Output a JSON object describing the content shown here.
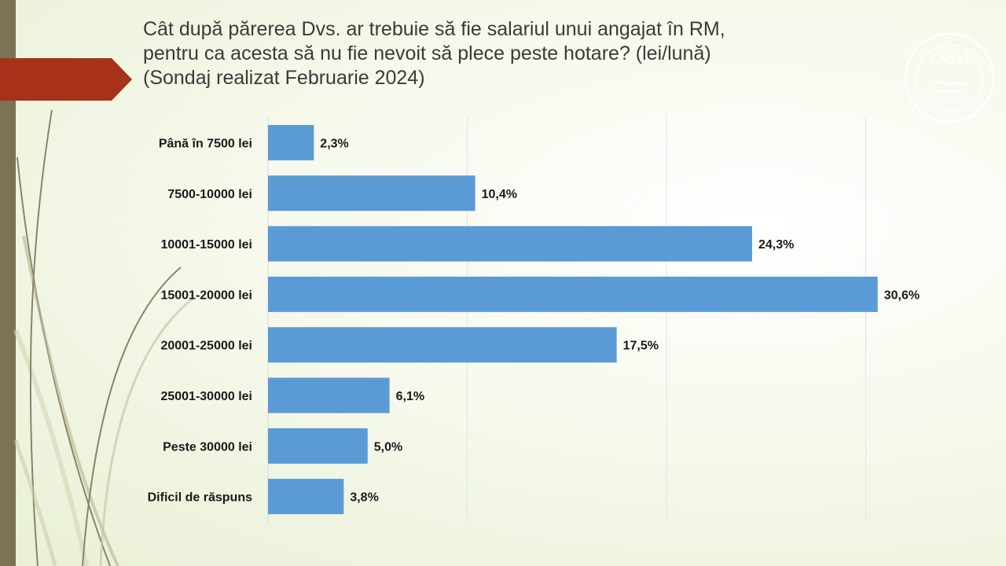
{
  "slide": {
    "title_lines": [
      "Cât după părerea Dvs. ar trebuie să fie salariul unui angajat în RM,",
      "pentru ca acesta să nu fie nevoit să plece peste hotare? (lei/lună)",
      "(Sondaj realizat Februarie 2024)"
    ],
    "logo_text": "CNSM",
    "colors": {
      "accent_flag": "#a8311a",
      "side_band": "#7a7356",
      "bar": "#5b9bd5"
    }
  },
  "chart_data": {
    "type": "bar",
    "orientation": "horizontal",
    "title": "Cât după părerea Dvs. ar trebuie să fie salariul unui angajat în RM, pentru ca acesta să nu fie nevoit să plece peste hotare? (lei/lună)",
    "subtitle": "(Sondaj realizat Februarie 2024)",
    "categories": [
      "Până în 7500  lei",
      "7500-10000 lei",
      "10001-15000 lei",
      "15001-20000 lei",
      "20001-25000 lei",
      "25001-30000 lei",
      "Peste 30000 lei",
      "Dificil de răspuns"
    ],
    "values": [
      2.3,
      10.4,
      24.3,
      30.6,
      17.5,
      6.1,
      5.0,
      3.8
    ],
    "value_labels": [
      "2,3%",
      "10,4%",
      "24,3%",
      "30,6%",
      "17,5%",
      "6,1%",
      "5,0%",
      "3,8%"
    ],
    "xlim": [
      0,
      35
    ],
    "grid": true,
    "legend": "none"
  }
}
